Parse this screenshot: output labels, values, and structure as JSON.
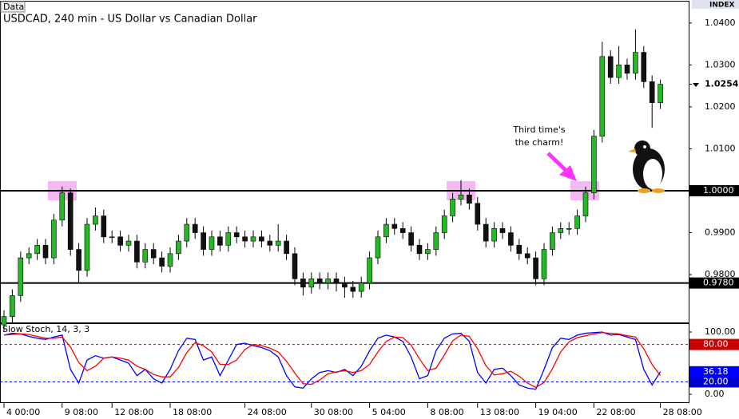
{
  "chart_data": [
    {
      "type": "candlestick",
      "window_label": "Data",
      "panel_label": "INDEX",
      "title": "USDCAD, 240 min - US Dollar vs Canadian Dollar",
      "annotation": [
        "Third time's",
        "the charm!"
      ],
      "bull_color": "#22bb22",
      "bear_color": "#111111",
      "ylim": [
        0.9686,
        1.0451
      ],
      "yticks": [
        {
          "value": 1.04,
          "label": "1.0400"
        },
        {
          "value": 1.03,
          "label": "1.0300"
        },
        {
          "value": 1.02,
          "label": "1.0200"
        },
        {
          "value": 1.01,
          "label": "1.0100"
        },
        {
          "value": 0.99,
          "label": "0.9900"
        },
        {
          "value": 0.98,
          "label": "0.9800"
        }
      ],
      "levels": [
        {
          "value": 1,
          "label": "1.0000"
        },
        {
          "value": 0.978,
          "label": "0.9780"
        }
      ],
      "last_price": {
        "value": 1.0254,
        "label": "1.0254"
      },
      "open": [
        0.968,
        0.97,
        0.975,
        0.984,
        0.985,
        0.987,
        0.984,
        0.993,
        0.9995,
        0.986,
        0.981,
        0.992,
        0.994,
        0.989,
        0.989,
        0.987,
        0.988,
        0.983,
        0.986,
        0.984,
        0.982,
        0.985,
        0.988,
        0.992,
        0.99,
        0.986,
        0.989,
        0.987,
        0.99,
        0.989,
        0.988,
        0.989,
        0.988,
        0.987,
        0.988,
        0.985,
        0.979,
        0.977,
        0.979,
        0.978,
        0.979,
        0.978,
        0.977,
        0.976,
        0.978,
        0.984,
        0.989,
        0.992,
        0.991,
        0.99,
        0.987,
        0.985,
        0.986,
        0.99,
        0.994,
        0.998,
        0.999,
        0.997,
        0.992,
        0.988,
        0.991,
        0.99,
        0.987,
        0.985,
        0.984,
        0.979,
        0.986,
        0.99,
        0.991,
        0.991,
        0.994,
        0.9995,
        1.013,
        1.032,
        1.027,
        1.03,
        1.028,
        1.033,
        1.026,
        1.021
      ],
      "high": [
        0.9715,
        0.9765,
        0.9855,
        0.9865,
        0.9885,
        0.9885,
        0.9945,
        1.001,
        1.0005,
        0.9875,
        0.9935,
        0.996,
        0.9955,
        0.9905,
        0.9905,
        0.9895,
        0.9895,
        0.9875,
        0.9875,
        0.9855,
        0.9865,
        0.9895,
        0.9935,
        0.9935,
        0.9915,
        0.9905,
        0.9905,
        0.9915,
        0.9915,
        0.9905,
        0.9905,
        0.9905,
        0.9895,
        0.992,
        0.9895,
        0.9865,
        0.9805,
        0.9805,
        0.9805,
        0.9805,
        0.9805,
        0.9795,
        0.9785,
        0.9795,
        0.9855,
        0.9905,
        0.9935,
        0.9935,
        0.9925,
        0.9915,
        0.9885,
        0.9875,
        0.9915,
        0.9955,
        0.9995,
        1.0025,
        1.0005,
        0.9985,
        0.9935,
        0.9925,
        0.9925,
        0.9915,
        0.9885,
        0.9865,
        0.9855,
        0.9875,
        0.9915,
        0.9925,
        0.9925,
        0.9955,
        1.001,
        1.0145,
        1.0355,
        1.0335,
        1.0345,
        1.0315,
        1.0385,
        1.0345,
        1.0275,
        1.0265
      ],
      "low": [
        0.9665,
        0.9685,
        0.9735,
        0.9825,
        0.9835,
        0.9825,
        0.9825,
        0.9915,
        0.9845,
        0.978,
        0.9795,
        0.9905,
        0.9875,
        0.9875,
        0.9855,
        0.9855,
        0.9815,
        0.9815,
        0.9825,
        0.9805,
        0.9805,
        0.9835,
        0.9865,
        0.9885,
        0.9845,
        0.9845,
        0.9855,
        0.9855,
        0.9875,
        0.9865,
        0.9865,
        0.9865,
        0.9855,
        0.9855,
        0.9835,
        0.9775,
        0.975,
        0.9755,
        0.9765,
        0.9765,
        0.976,
        0.9745,
        0.9745,
        0.9745,
        0.9765,
        0.9825,
        0.9875,
        0.9895,
        0.9885,
        0.9855,
        0.9835,
        0.9835,
        0.9845,
        0.9885,
        0.9925,
        0.9965,
        0.9955,
        0.9905,
        0.9865,
        0.9865,
        0.9885,
        0.9855,
        0.9835,
        0.9825,
        0.9775,
        0.9775,
        0.9845,
        0.9885,
        0.9895,
        0.9895,
        0.9925,
        0.998,
        1.0115,
        1.0255,
        1.0255,
        1.0265,
        1.0265,
        1.0245,
        1.015,
        1.0195
      ],
      "close": [
        0.97,
        0.975,
        0.984,
        0.985,
        0.987,
        0.984,
        0.993,
        0.9995,
        0.986,
        0.981,
        0.992,
        0.994,
        0.989,
        0.989,
        0.987,
        0.988,
        0.983,
        0.986,
        0.984,
        0.982,
        0.985,
        0.988,
        0.992,
        0.99,
        0.986,
        0.989,
        0.987,
        0.99,
        0.989,
        0.988,
        0.989,
        0.988,
        0.987,
        0.988,
        0.985,
        0.979,
        0.977,
        0.979,
        0.978,
        0.979,
        0.978,
        0.977,
        0.976,
        0.978,
        0.984,
        0.989,
        0.992,
        0.991,
        0.99,
        0.987,
        0.985,
        0.986,
        0.99,
        0.994,
        0.998,
        0.999,
        0.997,
        0.992,
        0.988,
        0.991,
        0.99,
        0.987,
        0.985,
        0.984,
        0.979,
        0.986,
        0.99,
        0.991,
        0.991,
        0.994,
        0.9995,
        1.013,
        1.032,
        1.027,
        1.03,
        1.028,
        1.033,
        1.026,
        1.021,
        1.0254
      ]
    },
    {
      "type": "line",
      "title": "Slow Stoch, 14, 3, 3",
      "categories": [
        "4 00:00",
        null,
        null,
        null,
        null,
        null,
        null,
        "9 08:00",
        null,
        null,
        null,
        null,
        null,
        "12 08:00",
        null,
        null,
        null,
        null,
        null,
        null,
        "18 08:00",
        null,
        null,
        null,
        null,
        null,
        null,
        null,
        null,
        "24 08:00",
        null,
        null,
        null,
        null,
        null,
        null,
        null,
        "30 08:00",
        null,
        null,
        null,
        null,
        null,
        null,
        "5 04:00",
        null,
        null,
        null,
        null,
        null,
        null,
        "8 08:00",
        null,
        null,
        null,
        null,
        null,
        "13 08:00",
        null,
        null,
        null,
        null,
        null,
        null,
        "19 04:00",
        null,
        null,
        null,
        null,
        null,
        null,
        "22 08:00",
        null,
        null,
        null,
        null,
        null,
        null,
        null,
        "28 08:00"
      ],
      "ylim": [
        -14,
        112.8
      ],
      "yticks": [
        {
          "value": 100,
          "label": "100.00"
        },
        {
          "value": 0,
          "label": "0.00"
        }
      ],
      "levels": [
        {
          "value": 80,
          "label": "80.00",
          "color": "#cc0000"
        },
        {
          "value": 20,
          "label": "20.00",
          "color": "#0000cc"
        }
      ],
      "series": [
        {
          "color": "#0000ff",
          "values": [
            95,
            98,
            97,
            93,
            90,
            88,
            92,
            95,
            40,
            18,
            55,
            62,
            58,
            60,
            55,
            50,
            30,
            40,
            25,
            18,
            40,
            70,
            90,
            88,
            55,
            60,
            30,
            55,
            80,
            82,
            78,
            75,
            70,
            60,
            30,
            12,
            10,
            25,
            35,
            38,
            35,
            40,
            30,
            45,
            70,
            90,
            95,
            92,
            85,
            60,
            25,
            30,
            70,
            90,
            97,
            98,
            85,
            35,
            18,
            40,
            42,
            30,
            15,
            10,
            8,
            40,
            75,
            90,
            88,
            95,
            98,
            99,
            100,
            95,
            96,
            92,
            88,
            40,
            15,
            36.18
          ]
        },
        {
          "color": "#ff0000",
          "values": [
            95,
            96,
            97,
            96,
            93,
            90,
            90,
            92,
            76,
            51,
            38,
            45,
            58,
            60,
            58,
            55,
            45,
            40,
            32,
            28,
            28,
            43,
            67,
            83,
            78,
            68,
            48,
            48,
            55,
            72,
            80,
            78,
            74,
            68,
            53,
            34,
            17,
            16,
            23,
            33,
            36,
            38,
            35,
            38,
            48,
            68,
            85,
            92,
            91,
            79,
            57,
            38,
            42,
            63,
            86,
            95,
            93,
            73,
            46,
            31,
            33,
            37,
            29,
            18,
            11,
            19,
            41,
            68,
            84,
            91,
            94,
            97,
            99,
            98,
            97,
            94,
            92,
            73,
            48,
            30
          ]
        }
      ]
    }
  ]
}
